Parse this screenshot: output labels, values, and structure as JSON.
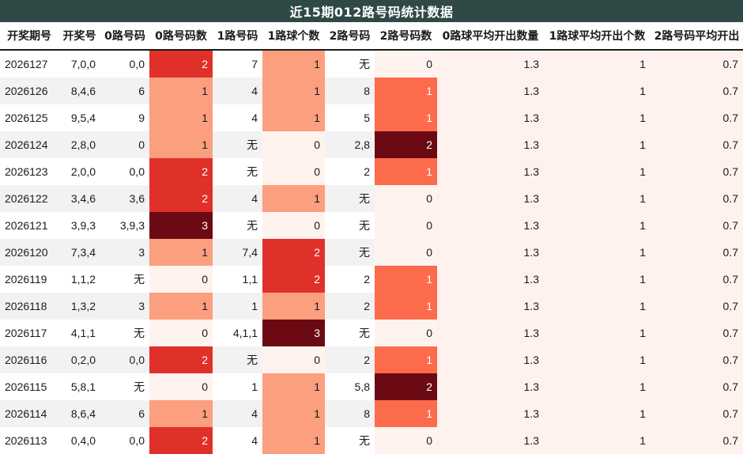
{
  "title": "近15期012路号码统计数据",
  "columns": [
    "开奖期号",
    "开奖号",
    "0路号码",
    "0路号码数",
    "1路号码",
    "1路球个数",
    "2路号码",
    "2路号码数",
    "0路球平均开出数量",
    "1路球平均开出个数",
    "2路号码平均开出"
  ],
  "rows": [
    {
      "period": "2026127",
      "draw": "7,0,0",
      "r0": "0,0",
      "r0n": "2",
      "r1": "7",
      "r1n": "1",
      "r2": "无",
      "r2n": "0",
      "a0": "1.3",
      "a1": "1",
      "a2": "0.7"
    },
    {
      "period": "2026126",
      "draw": "8,4,6",
      "r0": "6",
      "r0n": "1",
      "r1": "4",
      "r1n": "1",
      "r2": "8",
      "r2n": "1",
      "a0": "1.3",
      "a1": "1",
      "a2": "0.7"
    },
    {
      "period": "2026125",
      "draw": "9,5,4",
      "r0": "9",
      "r0n": "1",
      "r1": "4",
      "r1n": "1",
      "r2": "5",
      "r2n": "1",
      "a0": "1.3",
      "a1": "1",
      "a2": "0.7"
    },
    {
      "period": "2026124",
      "draw": "2,8,0",
      "r0": "0",
      "r0n": "1",
      "r1": "无",
      "r1n": "0",
      "r2": "2,8",
      "r2n": "2",
      "a0": "1.3",
      "a1": "1",
      "a2": "0.7"
    },
    {
      "period": "2026123",
      "draw": "2,0,0",
      "r0": "0,0",
      "r0n": "2",
      "r1": "无",
      "r1n": "0",
      "r2": "2",
      "r2n": "1",
      "a0": "1.3",
      "a1": "1",
      "a2": "0.7"
    },
    {
      "period": "2026122",
      "draw": "3,4,6",
      "r0": "3,6",
      "r0n": "2",
      "r1": "4",
      "r1n": "1",
      "r2": "无",
      "r2n": "0",
      "a0": "1.3",
      "a1": "1",
      "a2": "0.7"
    },
    {
      "period": "2026121",
      "draw": "3,9,3",
      "r0": "3,9,3",
      "r0n": "3",
      "r1": "无",
      "r1n": "0",
      "r2": "无",
      "r2n": "0",
      "a0": "1.3",
      "a1": "1",
      "a2": "0.7"
    },
    {
      "period": "2026120",
      "draw": "7,3,4",
      "r0": "3",
      "r0n": "1",
      "r1": "7,4",
      "r1n": "2",
      "r2": "无",
      "r2n": "0",
      "a0": "1.3",
      "a1": "1",
      "a2": "0.7"
    },
    {
      "period": "2026119",
      "draw": "1,1,2",
      "r0": "无",
      "r0n": "0",
      "r1": "1,1",
      "r1n": "2",
      "r2": "2",
      "r2n": "1",
      "a0": "1.3",
      "a1": "1",
      "a2": "0.7"
    },
    {
      "period": "2026118",
      "draw": "1,3,2",
      "r0": "3",
      "r0n": "1",
      "r1": "1",
      "r1n": "1",
      "r2": "2",
      "r2n": "1",
      "a0": "1.3",
      "a1": "1",
      "a2": "0.7"
    },
    {
      "period": "2026117",
      "draw": "4,1,1",
      "r0": "无",
      "r0n": "0",
      "r1": "4,1,1",
      "r1n": "3",
      "r2": "无",
      "r2n": "0",
      "a0": "1.3",
      "a1": "1",
      "a2": "0.7"
    },
    {
      "period": "2026116",
      "draw": "0,2,0",
      "r0": "0,0",
      "r0n": "2",
      "r1": "无",
      "r1n": "0",
      "r2": "2",
      "r2n": "1",
      "a0": "1.3",
      "a1": "1",
      "a2": "0.7"
    },
    {
      "period": "2026115",
      "draw": "5,8,1",
      "r0": "无",
      "r0n": "0",
      "r1": "1",
      "r1n": "1",
      "r2": "5,8",
      "r2n": "2",
      "a0": "1.3",
      "a1": "1",
      "a2": "0.7"
    },
    {
      "period": "2026114",
      "draw": "8,6,4",
      "r0": "6",
      "r0n": "1",
      "r1": "4",
      "r1n": "1",
      "r2": "8",
      "r2n": "1",
      "a0": "1.3",
      "a1": "1",
      "a2": "0.7"
    },
    {
      "period": "2026113",
      "draw": "0,4,0",
      "r0": "0,0",
      "r0n": "2",
      "r1": "4",
      "r1n": "1",
      "r2": "无",
      "r2n": "0",
      "a0": "1.3",
      "a1": "1",
      "a2": "0.7"
    }
  ]
}
